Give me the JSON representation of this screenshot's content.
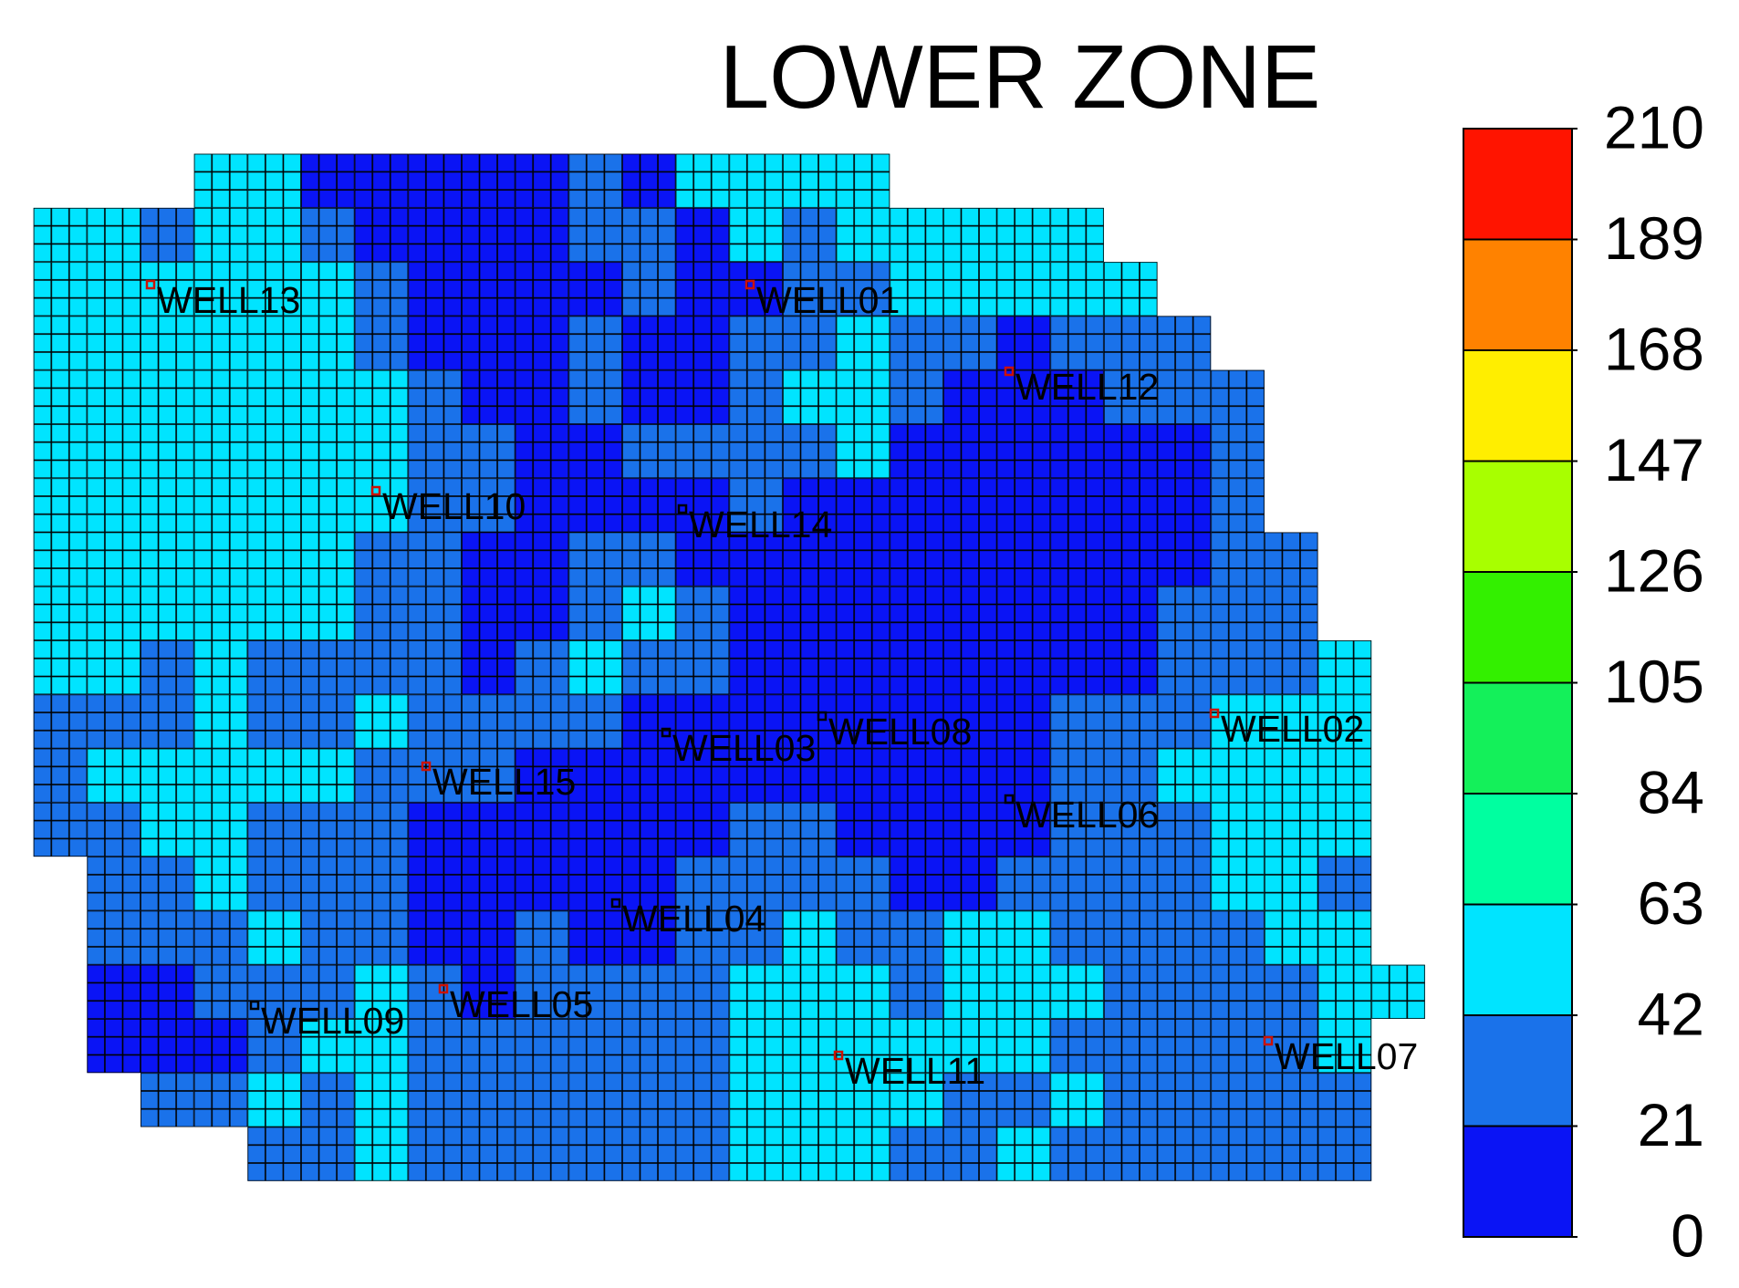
{
  "chart_data": {
    "type": "heatmap",
    "title": "LOWER ZONE",
    "colorbar_ticks": [
      0,
      21,
      42,
      63,
      84,
      105,
      126,
      147,
      168,
      189,
      210
    ],
    "colors": [
      "#0a14f5",
      "#1a72ea",
      "#00e4ff",
      "#00ffa0",
      "#14f05a",
      "#33f000",
      "#a8ff00",
      "#ffee00",
      "#ff8200",
      "#ff1400"
    ],
    "z": [
      [
        null,
        null,
        null,
        50,
        50,
        10,
        10,
        10,
        10,
        10,
        30,
        10,
        50,
        50,
        50,
        50,
        null,
        null,
        null,
        null,
        null,
        null,
        null,
        null,
        null,
        null
      ],
      [
        50,
        50,
        30,
        50,
        50,
        30,
        10,
        10,
        10,
        10,
        30,
        30,
        10,
        50,
        30,
        50,
        50,
        50,
        50,
        50,
        null,
        null,
        null,
        null,
        null,
        null
      ],
      [
        50,
        50,
        50,
        50,
        50,
        50,
        30,
        10,
        10,
        10,
        10,
        30,
        10,
        10,
        30,
        30,
        50,
        50,
        50,
        50,
        50,
        null,
        null,
        null,
        null,
        null
      ],
      [
        50,
        50,
        50,
        50,
        50,
        50,
        30,
        10,
        10,
        10,
        30,
        10,
        10,
        30,
        30,
        50,
        30,
        30,
        10,
        30,
        30,
        30,
        null,
        null,
        null,
        null
      ],
      [
        50,
        50,
        50,
        50,
        50,
        50,
        50,
        30,
        10,
        10,
        30,
        10,
        10,
        30,
        50,
        50,
        30,
        10,
        10,
        10,
        30,
        30,
        30,
        null,
        null,
        null
      ],
      [
        50,
        50,
        50,
        50,
        50,
        50,
        50,
        30,
        30,
        10,
        10,
        30,
        30,
        30,
        30,
        50,
        10,
        10,
        10,
        10,
        10,
        10,
        30,
        null,
        null,
        null
      ],
      [
        50,
        50,
        50,
        50,
        50,
        50,
        50,
        30,
        30,
        10,
        10,
        10,
        10,
        30,
        10,
        10,
        10,
        10,
        10,
        10,
        10,
        10,
        30,
        null,
        null,
        null
      ],
      [
        50,
        50,
        50,
        50,
        50,
        50,
        30,
        30,
        10,
        10,
        30,
        30,
        10,
        10,
        10,
        10,
        10,
        10,
        10,
        10,
        10,
        10,
        30,
        30,
        null,
        null
      ],
      [
        50,
        50,
        50,
        50,
        50,
        50,
        30,
        30,
        10,
        10,
        30,
        50,
        30,
        10,
        10,
        10,
        10,
        10,
        10,
        10,
        10,
        30,
        30,
        30,
        null,
        null
      ],
      [
        50,
        50,
        30,
        50,
        30,
        30,
        30,
        30,
        10,
        30,
        50,
        30,
        30,
        10,
        10,
        10,
        10,
        10,
        10,
        10,
        10,
        30,
        30,
        30,
        50,
        null
      ],
      [
        30,
        30,
        30,
        50,
        30,
        30,
        50,
        30,
        30,
        30,
        30,
        10,
        10,
        10,
        10,
        10,
        10,
        10,
        10,
        30,
        30,
        30,
        50,
        50,
        50,
        null
      ],
      [
        30,
        50,
        50,
        50,
        50,
        50,
        30,
        30,
        30,
        10,
        10,
        10,
        10,
        10,
        10,
        10,
        10,
        10,
        10,
        30,
        30,
        50,
        50,
        50,
        50,
        null
      ],
      [
        30,
        30,
        50,
        50,
        30,
        30,
        30,
        10,
        10,
        10,
        10,
        10,
        10,
        30,
        30,
        10,
        10,
        10,
        10,
        30,
        30,
        30,
        50,
        50,
        50,
        null
      ],
      [
        null,
        30,
        30,
        50,
        30,
        30,
        30,
        10,
        10,
        10,
        10,
        10,
        30,
        30,
        30,
        30,
        10,
        10,
        30,
        30,
        30,
        30,
        50,
        50,
        30,
        null
      ],
      [
        null,
        30,
        30,
        30,
        50,
        30,
        30,
        10,
        10,
        30,
        10,
        10,
        30,
        30,
        50,
        30,
        30,
        50,
        50,
        30,
        30,
        30,
        30,
        50,
        50,
        null
      ],
      [
        null,
        10,
        10,
        30,
        30,
        30,
        50,
        30,
        10,
        30,
        30,
        30,
        30,
        50,
        50,
        50,
        30,
        50,
        50,
        50,
        30,
        30,
        30,
        30,
        50,
        50
      ],
      [
        null,
        10,
        10,
        10,
        30,
        50,
        50,
        30,
        30,
        30,
        30,
        30,
        30,
        50,
        50,
        50,
        50,
        50,
        50,
        30,
        30,
        30,
        30,
        30,
        50,
        null
      ],
      [
        null,
        null,
        30,
        30,
        50,
        30,
        50,
        30,
        30,
        30,
        30,
        30,
        30,
        50,
        50,
        50,
        50,
        30,
        30,
        50,
        30,
        30,
        30,
        30,
        30,
        null
      ],
      [
        null,
        null,
        null,
        null,
        30,
        30,
        50,
        30,
        30,
        30,
        30,
        30,
        30,
        50,
        50,
        50,
        30,
        30,
        50,
        30,
        30,
        30,
        30,
        30,
        30,
        null
      ]
    ],
    "wells": [
      {
        "name": "WELL13",
        "color": "#cc1100"
      },
      {
        "name": "WELL01",
        "color": "#cc1100"
      },
      {
        "name": "WELL12",
        "color": "#cc1100"
      },
      {
        "name": "WELL10",
        "color": "#cc1100"
      },
      {
        "name": "WELL14",
        "color": "#000000"
      },
      {
        "name": "WELL08",
        "color": "#000000"
      },
      {
        "name": "WELL02",
        "color": "#cc1100"
      },
      {
        "name": "WELL03",
        "color": "#000000"
      },
      {
        "name": "WELL15",
        "color": "#cc1100"
      },
      {
        "name": "WELL06",
        "color": "#000000"
      },
      {
        "name": "WELL04",
        "color": "#000000"
      },
      {
        "name": "WELL09",
        "color": "#000000"
      },
      {
        "name": "WELL05",
        "color": "#cc1100"
      },
      {
        "name": "WELL11",
        "color": "#cc1100"
      },
      {
        "name": "WELL07",
        "color": "#cc1100"
      }
    ]
  }
}
